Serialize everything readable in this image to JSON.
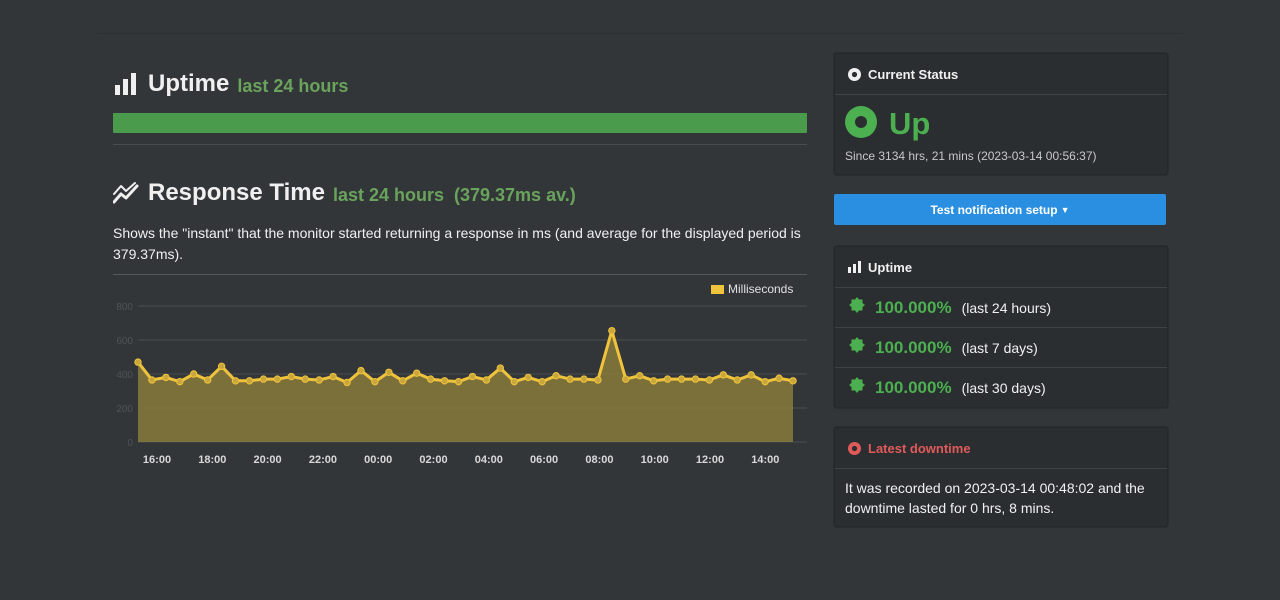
{
  "uptime_section": {
    "title": "Uptime",
    "subtitle": "last 24 hours",
    "uptime_fraction": 1.0
  },
  "response_section": {
    "title": "Response Time",
    "subtitle": "last 24 hours",
    "average": "(379.37ms av.)",
    "description": "Shows the \"instant\" that the monitor started returning a response in ms (and average for the displayed period is 379.37ms)."
  },
  "chart_data": {
    "type": "area",
    "legend": [
      "Milliseconds"
    ],
    "legend_position": "top-right",
    "ylim": [
      0,
      800
    ],
    "yticks": [
      "0",
      "200",
      "400",
      "600",
      "800"
    ],
    "xticks": [
      "16:00",
      "18:00",
      "20:00",
      "22:00",
      "00:00",
      "02:00",
      "04:00",
      "06:00",
      "08:00",
      "10:00",
      "12:00",
      "14:00"
    ],
    "grid": true,
    "series": [
      {
        "name": "Milliseconds",
        "values": [
          470,
          365,
          380,
          355,
          400,
          365,
          445,
          360,
          360,
          370,
          370,
          385,
          370,
          365,
          385,
          350,
          420,
          355,
          410,
          360,
          405,
          370,
          360,
          355,
          385,
          365,
          435,
          355,
          380,
          355,
          390,
          370,
          370,
          365,
          655,
          370,
          390,
          360,
          370,
          370,
          370,
          365,
          395,
          365,
          395,
          355,
          375,
          360
        ]
      }
    ],
    "colors": {
      "line": "#f0c33c",
      "fill": "#8a7a3b",
      "grid": "#4a4d50",
      "axis_text": "#d8d8d8"
    }
  },
  "current_status": {
    "header": "Current Status",
    "status": "Up",
    "since": "Since 3134 hrs, 21 mins (2023-03-14 00:56:37)"
  },
  "notify_button": {
    "label": "Test notification setup"
  },
  "uptime_panel": {
    "header": "Uptime",
    "rows": [
      {
        "pct": "100.000%",
        "period": "(last 24 hours)"
      },
      {
        "pct": "100.000%",
        "period": "(last 7 days)"
      },
      {
        "pct": "100.000%",
        "period": "(last 30 days)"
      }
    ]
  },
  "downtime_panel": {
    "header": "Latest downtime",
    "text": "It was recorded on 2023-03-14 00:48:02 and the downtime lasted for 0 hrs, 8 mins."
  },
  "colors": {
    "background": "#333639",
    "success": "#4caf50",
    "danger": "#e05a5a",
    "button": "#2a8fe0"
  }
}
